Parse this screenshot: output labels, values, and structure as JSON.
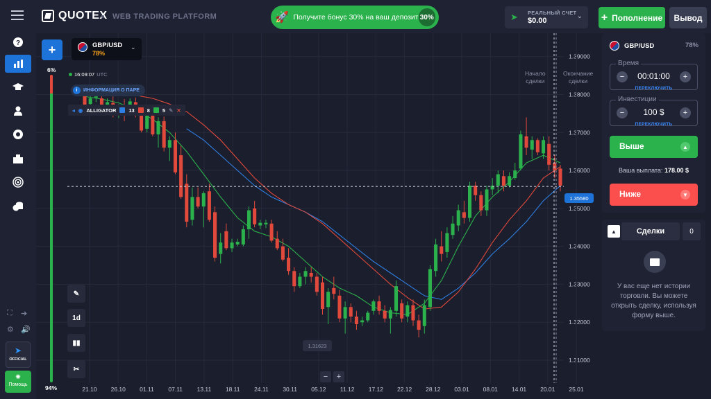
{
  "header": {
    "brand": "QUOTEX",
    "tagline": "WEB TRADING PLATFORM",
    "bonus_text": "Получите бонус 30% на ваш депозит",
    "bonus_percent": "30%",
    "account_label": "РЕАЛЬНЫЙ СЧЕТ",
    "account_balance": "$0.00",
    "deposit_label": "Пополнение",
    "withdraw_label": "Вывод"
  },
  "sidebar": {
    "items": [
      {
        "icon": "help-icon"
      },
      {
        "icon": "chart-icon",
        "active": true
      },
      {
        "icon": "education-icon"
      },
      {
        "icon": "account-icon"
      },
      {
        "icon": "tournament-icon"
      },
      {
        "icon": "market-icon"
      },
      {
        "icon": "signals-icon"
      },
      {
        "icon": "coins-icon"
      }
    ],
    "official_label": "OFFICIAL",
    "help_label": "Помощь"
  },
  "chart": {
    "asset": "GBP/USD",
    "asset_payout": "78%",
    "clock_time": "16:09:07",
    "clock_tz": "UTC",
    "info_label": "ИНФОРМАЦИЯ О ПАРЕ",
    "indicator_name": "ALLIGATOR",
    "indicator_params": [
      "13",
      "8",
      "5"
    ],
    "indicator_colors": [
      "#2f7fe3",
      "#e0493c",
      "#2bb24c"
    ],
    "sentiment_top": "6%",
    "sentiment_bottom": "94%",
    "sentiment_down_fraction": 0.06,
    "timeframe_label": "1d",
    "low_price_label": "1.31623",
    "current_price": "1.35580",
    "deal_start_label": [
      "Начало",
      "сделки"
    ],
    "deal_end_label": [
      "Окончание",
      "сделки"
    ],
    "zoom_minus": "−",
    "zoom_plus": "+"
  },
  "chart_data": {
    "type": "candlestick",
    "y_ticks": [
      "1.39000",
      "1.38000",
      "1.37000",
      "1.36000",
      "1.35000",
      "1.34000",
      "1.33000",
      "1.32000",
      "1.31000"
    ],
    "ylim": [
      1.3058,
      1.3925
    ],
    "x_ticks": [
      "21.10",
      "26.10",
      "01.11",
      "07.11",
      "13.11",
      "18.11",
      "24.11",
      "30.11",
      "05.12",
      "11.12",
      "17.12",
      "22.12",
      "28.12",
      "03.01",
      "08.01",
      "14.01",
      "20.01",
      "25.01"
    ],
    "current_price": 1.3558,
    "low_marker": 1.31623,
    "ohlc": [
      [
        1.3805,
        1.3812,
        1.3765,
        1.3772
      ],
      [
        1.3775,
        1.3798,
        1.376,
        1.379
      ],
      [
        1.3792,
        1.381,
        1.378,
        1.3795
      ],
      [
        1.379,
        1.38,
        1.3755,
        1.3762
      ],
      [
        1.3765,
        1.379,
        1.3745,
        1.378
      ],
      [
        1.3778,
        1.3795,
        1.374,
        1.375
      ],
      [
        1.3752,
        1.3775,
        1.3738,
        1.3768
      ],
      [
        1.377,
        1.3788,
        1.373,
        1.3745
      ],
      [
        1.376,
        1.379,
        1.375,
        1.3782
      ],
      [
        1.378,
        1.3792,
        1.374,
        1.3752
      ],
      [
        1.3755,
        1.377,
        1.37,
        1.3705
      ],
      [
        1.371,
        1.376,
        1.37,
        1.375
      ],
      [
        1.375,
        1.3768,
        1.369,
        1.3695
      ],
      [
        1.3695,
        1.374,
        1.366,
        1.373
      ],
      [
        1.373,
        1.3742,
        1.365,
        1.366
      ],
      [
        1.366,
        1.369,
        1.3625,
        1.368
      ],
      [
        1.368,
        1.37,
        1.359,
        1.3595
      ],
      [
        1.364,
        1.3665,
        1.3525,
        1.353
      ],
      [
        1.3565,
        1.359,
        1.345,
        1.3465
      ],
      [
        1.347,
        1.3555,
        1.3455,
        1.353
      ],
      [
        1.353,
        1.3555,
        1.35,
        1.3505
      ],
      [
        1.3505,
        1.3545,
        1.345,
        1.354
      ],
      [
        1.3545,
        1.3565,
        1.3465,
        1.347
      ],
      [
        1.349,
        1.3505,
        1.336,
        1.337
      ],
      [
        1.338,
        1.3435,
        1.3355,
        1.341
      ],
      [
        1.344,
        1.346,
        1.339,
        1.3395
      ],
      [
        1.3395,
        1.342,
        1.3385,
        1.341
      ],
      [
        1.3405,
        1.342,
        1.34,
        1.3412
      ],
      [
        1.3405,
        1.3455,
        1.34,
        1.3445
      ],
      [
        1.3445,
        1.3505,
        1.342,
        1.3495
      ],
      [
        1.35,
        1.352,
        1.345,
        1.3458
      ],
      [
        1.3455,
        1.347,
        1.3445,
        1.3462
      ],
      [
        1.3458,
        1.347,
        1.3448,
        1.3462
      ],
      [
        1.346,
        1.347,
        1.341,
        1.3415
      ],
      [
        1.342,
        1.344,
        1.339,
        1.3395
      ],
      [
        1.34,
        1.342,
        1.336,
        1.3365
      ],
      [
        1.337,
        1.3395,
        1.3325,
        1.3335
      ],
      [
        1.3335,
        1.3345,
        1.328,
        1.3295
      ],
      [
        1.3295,
        1.333,
        1.329,
        1.332
      ],
      [
        1.332,
        1.3345,
        1.33,
        1.3335
      ],
      [
        1.333,
        1.3345,
        1.3305,
        1.332
      ],
      [
        1.332,
        1.333,
        1.327,
        1.328
      ],
      [
        1.3305,
        1.332,
        1.322,
        1.3235
      ],
      [
        1.324,
        1.329,
        1.3195,
        1.328
      ],
      [
        1.329,
        1.332,
        1.326,
        1.3275
      ],
      [
        1.327,
        1.3285,
        1.32,
        1.321
      ],
      [
        1.321,
        1.3255,
        1.317,
        1.324
      ],
      [
        1.324,
        1.325,
        1.32,
        1.3215
      ],
      [
        1.3215,
        1.323,
        1.318,
        1.3195
      ],
      [
        1.32,
        1.3215,
        1.319,
        1.3205
      ],
      [
        1.3205,
        1.323,
        1.32,
        1.3225
      ],
      [
        1.323,
        1.326,
        1.322,
        1.3255
      ],
      [
        1.3255,
        1.327,
        1.322,
        1.323
      ],
      [
        1.323,
        1.3245,
        1.32,
        1.321
      ],
      [
        1.321,
        1.324,
        1.317,
        1.3232
      ],
      [
        1.323,
        1.331,
        1.3215,
        1.3295
      ],
      [
        1.325,
        1.326,
        1.32,
        1.321
      ],
      [
        1.3215,
        1.3255,
        1.32,
        1.3245
      ],
      [
        1.3245,
        1.326,
        1.319,
        1.3205
      ],
      [
        1.3205,
        1.322,
        1.316,
        1.318
      ],
      [
        1.319,
        1.326,
        1.317,
        1.3245
      ],
      [
        1.324,
        1.335,
        1.323,
        1.334
      ],
      [
        1.3335,
        1.342,
        1.332,
        1.3405
      ],
      [
        1.34,
        1.344,
        1.336,
        1.338
      ],
      [
        1.3385,
        1.345,
        1.337,
        1.3435
      ],
      [
        1.343,
        1.348,
        1.342,
        1.346
      ],
      [
        1.3455,
        1.351,
        1.344,
        1.3495
      ],
      [
        1.349,
        1.352,
        1.346,
        1.3475
      ],
      [
        1.3475,
        1.357,
        1.3465,
        1.356
      ],
      [
        1.356,
        1.357,
        1.352,
        1.3535
      ],
      [
        1.3535,
        1.3545,
        1.348,
        1.3495
      ],
      [
        1.3495,
        1.356,
        1.348,
        1.355
      ],
      [
        1.355,
        1.358,
        1.3535,
        1.356
      ],
      [
        1.356,
        1.36,
        1.354,
        1.359
      ],
      [
        1.3585,
        1.36,
        1.3545,
        1.356
      ],
      [
        1.356,
        1.3595,
        1.3555,
        1.3585
      ],
      [
        1.358,
        1.362,
        1.3575,
        1.36
      ],
      [
        1.3605,
        1.3705,
        1.36,
        1.3695
      ],
      [
        1.369,
        1.374,
        1.364,
        1.366
      ],
      [
        1.3655,
        1.369,
        1.363,
        1.368
      ],
      [
        1.368,
        1.3685,
        1.364,
        1.3648
      ],
      [
        1.3645,
        1.369,
        1.363,
        1.368
      ],
      [
        1.367,
        1.369,
        1.36,
        1.3615
      ],
      [
        1.362,
        1.364,
        1.358,
        1.36
      ],
      [
        1.3605,
        1.3615,
        1.3545,
        1.356
      ]
    ],
    "sma_green": [
      1.3795,
      1.3788,
      1.3778,
      1.376,
      1.3735,
      1.37,
      1.365,
      1.359,
      1.353,
      1.3475,
      1.344,
      1.3425,
      1.34,
      1.336,
      1.332,
      1.329,
      1.327,
      1.324,
      1.3225,
      1.322,
      1.325,
      1.331,
      1.34,
      1.348,
      1.353,
      1.357,
      1.362,
      1.364,
      1.362
    ],
    "sma_red": [
      1.38,
      1.3798,
      1.379,
      1.3775,
      1.3755,
      1.372,
      1.368,
      1.363,
      1.358,
      1.354,
      1.351,
      1.349,
      1.346,
      1.342,
      1.338,
      1.334,
      1.33,
      1.3265,
      1.3235,
      1.324,
      1.328,
      1.334,
      1.341,
      1.347,
      1.352,
      1.358,
      1.361
    ],
    "sma_blue": [
      1.371,
      1.368,
      1.364,
      1.36,
      1.356,
      1.353,
      1.351,
      1.349,
      1.3465,
      1.343,
      1.3395,
      1.336,
      1.333,
      1.33,
      1.327,
      1.326,
      1.329,
      1.333,
      1.338,
      1.342,
      1.3465,
      1.352,
      1.356
    ]
  },
  "trade_panel": {
    "asset": "GBP/USD",
    "payout_percent": "78%",
    "time_label": "Время",
    "time_value": "00:01:00",
    "switch_label": "ПЕРЕКЛЮЧИТЬ",
    "investment_label": "Инвестиции",
    "investment_value": "100 $",
    "up_label": "Выше",
    "down_label": "Ниже",
    "payout_label": "Ваша выплата:",
    "payout_value": "178.00 $"
  },
  "trades": {
    "title": "Сделки",
    "count": "0",
    "empty_text": "У вас еще нет истории торговли. Вы можете открыть сделку, используя форму выше."
  }
}
